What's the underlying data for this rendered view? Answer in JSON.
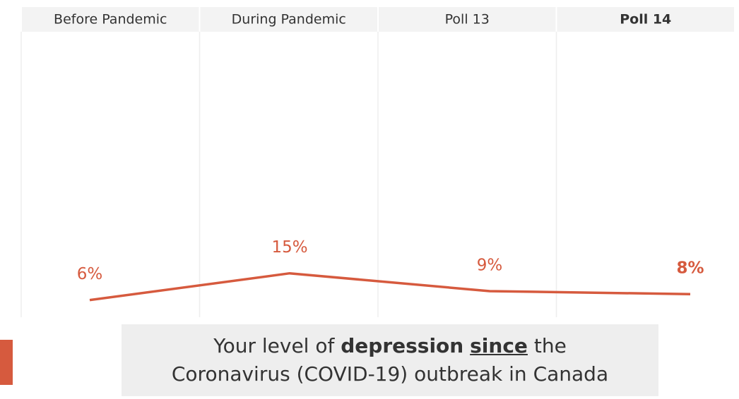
{
  "chart_data": {
    "type": "line",
    "categories": [
      "Before Pandemic",
      "During Pandemic",
      "Poll 13",
      "Poll 14"
    ],
    "series": [
      {
        "color": "#d65a3e",
        "values": [
          6,
          15,
          9,
          8
        ],
        "value_labels": [
          "6%",
          "15%",
          "9%",
          "8%"
        ]
      }
    ],
    "title_parts": [
      "Your level of",
      "depression",
      "since",
      "the",
      "Coronavirus (COVID-19) outbreak in Canada"
    ]
  }
}
